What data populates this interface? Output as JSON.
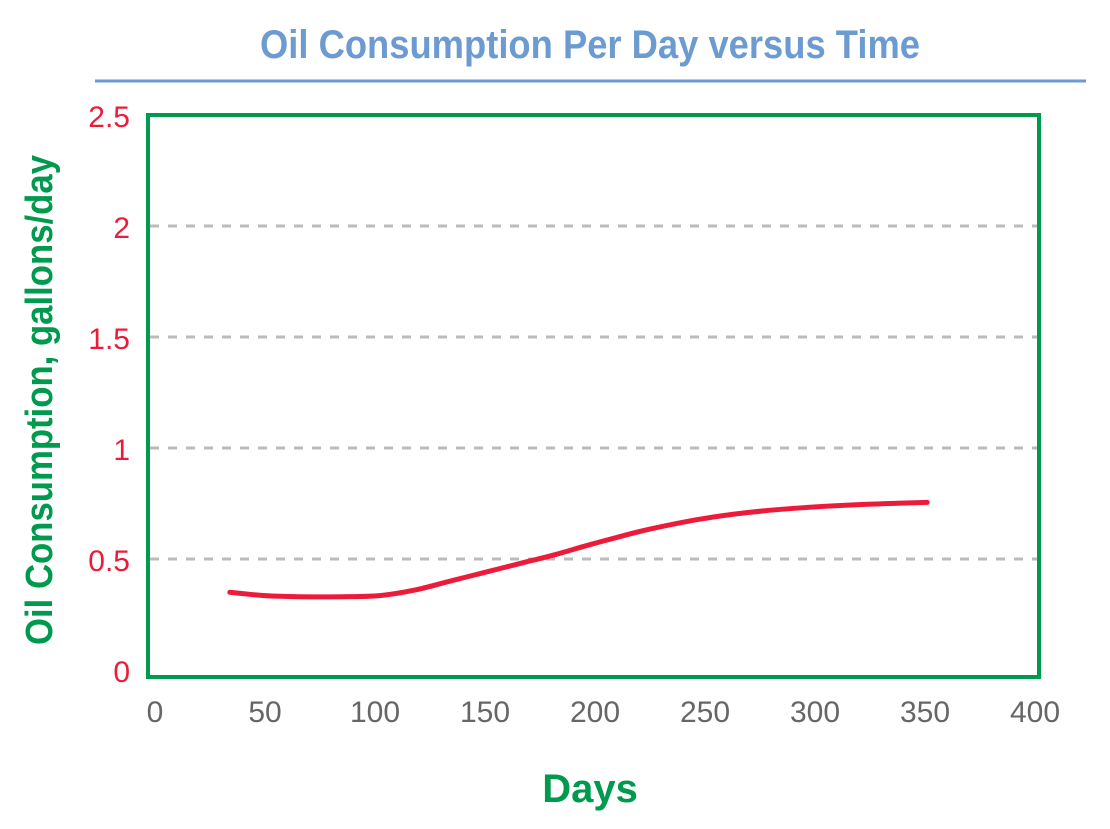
{
  "chart_data": {
    "type": "line",
    "title": "Oil Consumption Per Day  versus Time",
    "xlabel": "Days",
    "ylabel": "Oil Consumption, gallons/day",
    "xlim": [
      0,
      400
    ],
    "ylim": [
      0,
      2.5
    ],
    "xticks": [
      "0",
      "50",
      "100",
      "150",
      "200",
      "250",
      "300",
      "350",
      "400"
    ],
    "yticks": [
      "0",
      "0.5",
      "1",
      "1.5",
      "2",
      "2.5"
    ],
    "grid": "horizontal dashed",
    "series": [
      {
        "x": [
          34,
          50,
          66,
          85,
          102,
          118,
          134,
          150,
          166,
          182,
          196,
          211,
          225,
          248,
          270,
          293,
          320,
          351
        ],
        "y": [
          0.35,
          0.335,
          0.33,
          0.33,
          0.335,
          0.36,
          0.4,
          0.44,
          0.48,
          0.52,
          0.56,
          0.6,
          0.635,
          0.68,
          0.71,
          0.73,
          0.745,
          0.755
        ]
      }
    ],
    "colors": {
      "title": "#6b9bd0",
      "frame": "#009a4e",
      "line": "#ed1b3a",
      "ytick": "#ed1b3a",
      "xtick": "#666666",
      "grid": "#bbbbbb",
      "axis_label": "#009a4e"
    }
  }
}
